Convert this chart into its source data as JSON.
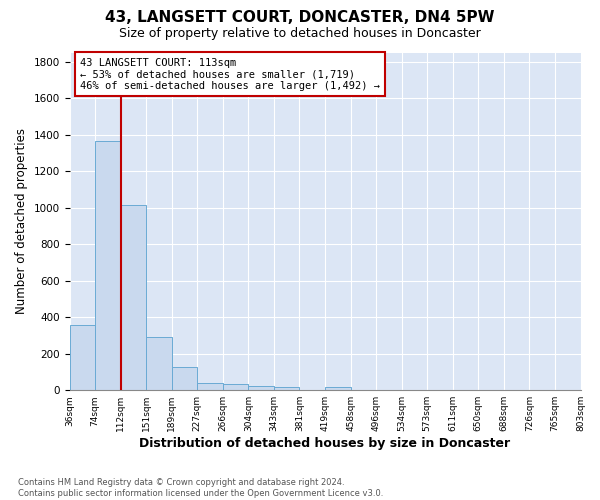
{
  "title": "43, LANGSETT COURT, DONCASTER, DN4 5PW",
  "subtitle": "Size of property relative to detached houses in Doncaster",
  "xlabel": "Distribution of detached houses by size in Doncaster",
  "ylabel": "Number of detached properties",
  "bar_values": [
    355,
    1365,
    1015,
    290,
    127,
    42,
    35,
    22,
    18,
    0,
    18,
    0,
    0,
    0,
    0,
    0,
    0,
    0,
    0,
    0
  ],
  "bin_labels": [
    "36sqm",
    "74sqm",
    "112sqm",
    "151sqm",
    "189sqm",
    "227sqm",
    "266sqm",
    "304sqm",
    "343sqm",
    "381sqm",
    "419sqm",
    "458sqm",
    "496sqm",
    "534sqm",
    "573sqm",
    "611sqm",
    "650sqm",
    "688sqm",
    "726sqm",
    "765sqm",
    "803sqm"
  ],
  "bar_color": "#c9d9ee",
  "bar_edge_color": "#6aaad4",
  "vline_color": "#c00000",
  "annotation_text": "43 LANGSETT COURT: 113sqm\n← 53% of detached houses are smaller (1,719)\n46% of semi-detached houses are larger (1,492) →",
  "annotation_box_color": "#c00000",
  "ylim": [
    0,
    1850
  ],
  "yticks": [
    0,
    200,
    400,
    600,
    800,
    1000,
    1200,
    1400,
    1600,
    1800
  ],
  "bg_color": "#dce6f5",
  "grid_color": "#c0cfe0",
  "footnote": "Contains HM Land Registry data © Crown copyright and database right 2024.\nContains public sector information licensed under the Open Government Licence v3.0.",
  "title_fontsize": 11,
  "subtitle_fontsize": 9,
  "xlabel_fontsize": 9,
  "ylabel_fontsize": 8.5
}
